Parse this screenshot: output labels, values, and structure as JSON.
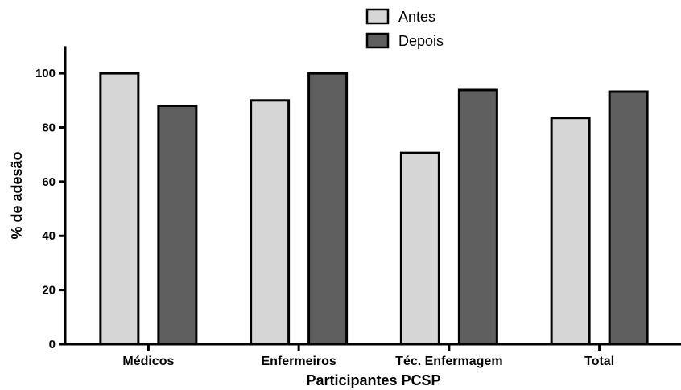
{
  "chart_data": {
    "type": "bar",
    "categories": [
      "Médicos",
      "Enfermeiros",
      "Téc. Enfermagem",
      "Total"
    ],
    "series": [
      {
        "name": "Antes",
        "values": [
          100,
          90,
          70.6,
          83.5
        ],
        "color": "#d6d6d6"
      },
      {
        "name": "Depois",
        "values": [
          88,
          100,
          93.8,
          93.2
        ],
        "color": "#5f5f5f"
      }
    ],
    "ylabel": "% de adesão",
    "xlabel": "Participantes PCSP",
    "ylim": [
      0,
      110
    ],
    "yticks": [
      0,
      20,
      40,
      60,
      80,
      100
    ],
    "legend_position": "top-right",
    "grid": false
  }
}
